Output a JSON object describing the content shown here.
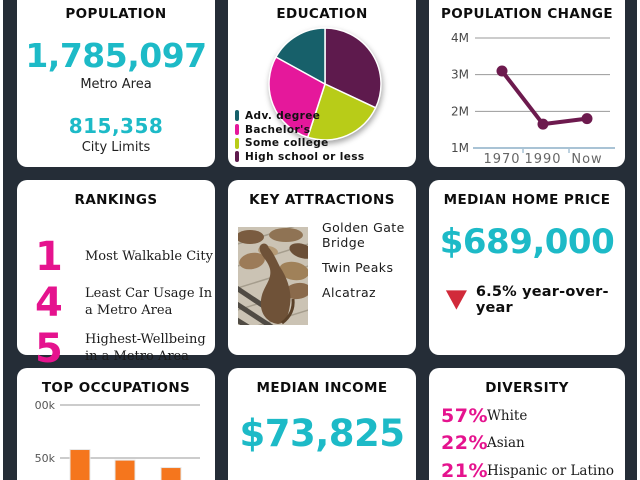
{
  "theme": {
    "page_bg": "#ffffff",
    "panel_bg": "#252d37",
    "card_bg": "#ffffff",
    "accent_teal": "#1dbac7",
    "accent_magenta": "#e5138e",
    "accent_maroon": "#6d1a4e",
    "accent_orange": "#f5761d",
    "accent_red": "#d12a3a"
  },
  "cards": {
    "population": {
      "title": "POPULATION",
      "metro_value": "1,785,097",
      "metro_label": "Metro Area",
      "city_value": "815,358",
      "city_label": "City Limits"
    },
    "education": {
      "title": "EDUCATION"
    },
    "population_change": {
      "title": "POPULATION CHANGE"
    },
    "rankings": {
      "title": "RANKINGS",
      "items": [
        {
          "rank": "1",
          "label": "Most Walkable City"
        },
        {
          "rank": "4",
          "label": "Least Car Usage In a Metro Area"
        },
        {
          "rank": "5",
          "label": "Highest-Wellbeing in a Metro Area"
        }
      ]
    },
    "attractions": {
      "title": "KEY ATTRACTIONS",
      "photo": "sea-lions-on-pier",
      "items": [
        "Golden Gate Bridge",
        "Twin Peaks",
        "Alcatraz"
      ]
    },
    "home_price": {
      "title": "MEDIAN HOME PRICE",
      "value": "$689,000",
      "trend": "6.5% year-over-year",
      "trend_direction": "down"
    },
    "occupations": {
      "title": "TOP OCCUPATIONS"
    },
    "income": {
      "title": "MEDIAN INCOME",
      "value": "$73,825"
    },
    "diversity": {
      "title": "DIVERSITY",
      "items": [
        {
          "pct": "57%",
          "label": "White"
        },
        {
          "pct": "22%",
          "label": "Asian"
        },
        {
          "pct": "21%",
          "label": "Hispanic or Latino"
        }
      ]
    }
  },
  "chart_data": [
    {
      "id": "education_pie",
      "type": "pie",
      "title": "EDUCATION",
      "start_angle_deg": 0,
      "slices": [
        {
          "label": "High school or less",
          "value": 32,
          "color": "#5e1a4d"
        },
        {
          "label": "Some college",
          "value": 23,
          "color": "#b8cc18"
        },
        {
          "label": "Bachelor's",
          "value": 28,
          "color": "#e5189b"
        },
        {
          "label": "Adv. degree",
          "value": 17,
          "color": "#17606a"
        }
      ],
      "legend_order": [
        "Adv. degree",
        "Bachelor's",
        "Some college",
        "High school or less"
      ],
      "legend_position": "bottom-left"
    },
    {
      "id": "population_change_line",
      "type": "line",
      "title": "POPULATION CHANGE",
      "x": [
        "1970",
        "1990",
        "Now"
      ],
      "values_millions": [
        3.1,
        1.65,
        1.8
      ],
      "y_ticks": [
        "1M",
        "2M",
        "3M",
        "4M"
      ],
      "y_tick_values_millions": [
        1,
        2,
        3,
        4
      ],
      "y_range_millions": [
        1,
        4
      ],
      "line_color": "#6d1a4e",
      "grid": true,
      "legend": "none"
    },
    {
      "id": "occupations_bar",
      "type": "bar",
      "title": "TOP OCCUPATIONS",
      "values_thousands": [
        58,
        48,
        41
      ],
      "y_tick_labels": [
        "00k",
        "50k"
      ],
      "y_tick_values_thousands": [
        100,
        50
      ],
      "bar_color": "#f5761d",
      "grid": true,
      "note_layout": "bars cropped by bottom edge of view; x labels not visible"
    }
  ]
}
